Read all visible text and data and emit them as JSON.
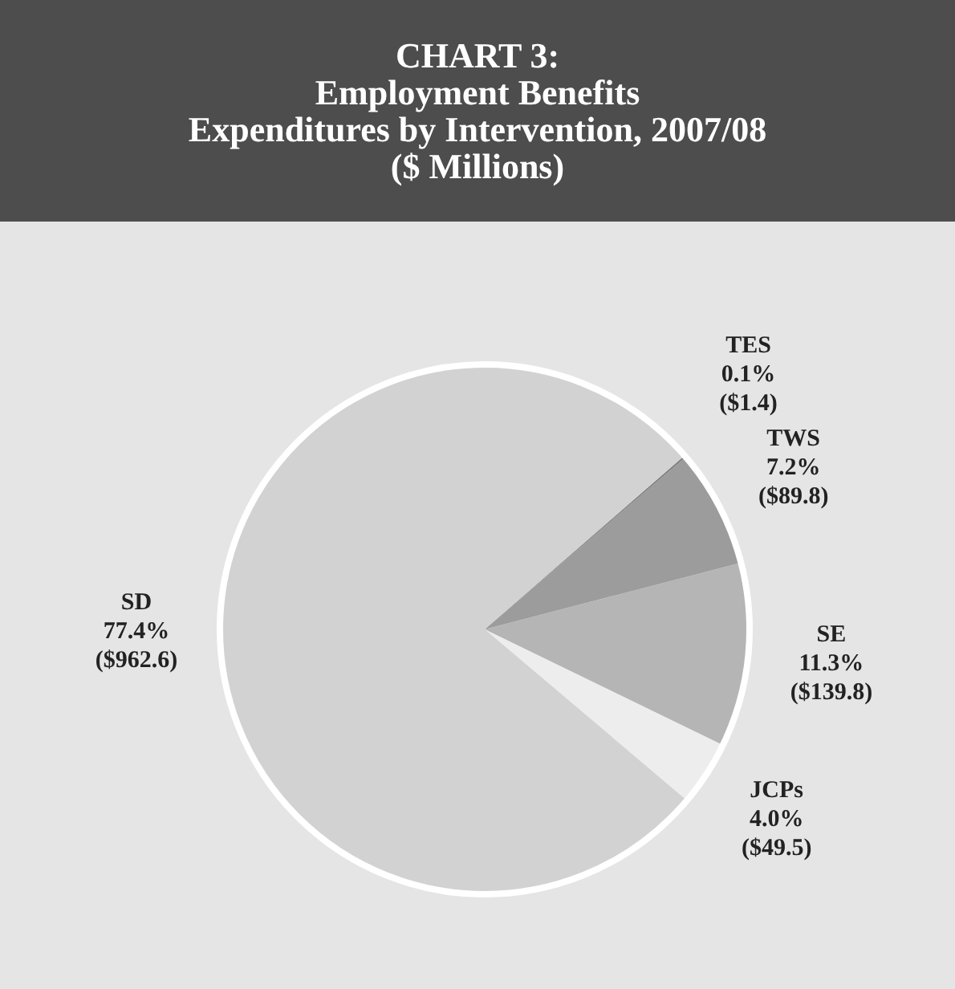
{
  "chart_data": {
    "type": "pie",
    "title": "CHART 3:\nEmployment Benefits\nExpenditures by Intervention, 2007/08\n($ Millions)",
    "categories": [
      "TES",
      "TWS",
      "SE",
      "JCPs",
      "SD"
    ],
    "values": [
      1.4,
      89.8,
      139.8,
      49.5,
      962.6
    ],
    "value_labels": [
      "0.1%\n($1.4)",
      "7.2%\n($89.8)",
      "11.3%\n($139.8)",
      "4.0%\n($49.5)",
      "77.4%\n($962.6)"
    ],
    "colors": [
      "#7d7d7d",
      "#9c9c9c",
      "#b5b5b5",
      "#ededed",
      "#d2d2d2"
    ],
    "legend": false
  }
}
